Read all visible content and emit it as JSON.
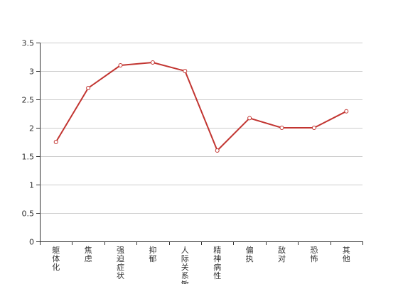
{
  "chart_data": {
    "type": "line",
    "title": "",
    "xlabel": "",
    "ylabel": "",
    "categories": [
      "躯体化",
      "焦虑",
      "强迫症状",
      "抑郁",
      "人际关系敏感",
      "精神病性",
      "偏执",
      "敌对",
      "恐怖",
      "其他"
    ],
    "series": [
      {
        "values": [
          1.75,
          2.7,
          3.1,
          3.15,
          3.0,
          1.6,
          2.17,
          2.0,
          2.0,
          2.29
        ]
      }
    ],
    "ylim": [
      0,
      3.5
    ],
    "yticks": [
      "0",
      "0.5",
      "1",
      "1.5",
      "2",
      "2.5",
      "3",
      "3.5"
    ],
    "grid": true,
    "legend": "none",
    "colors": {
      "line": "#c23531",
      "grid": "#cccccc",
      "axis": "#333333"
    }
  }
}
